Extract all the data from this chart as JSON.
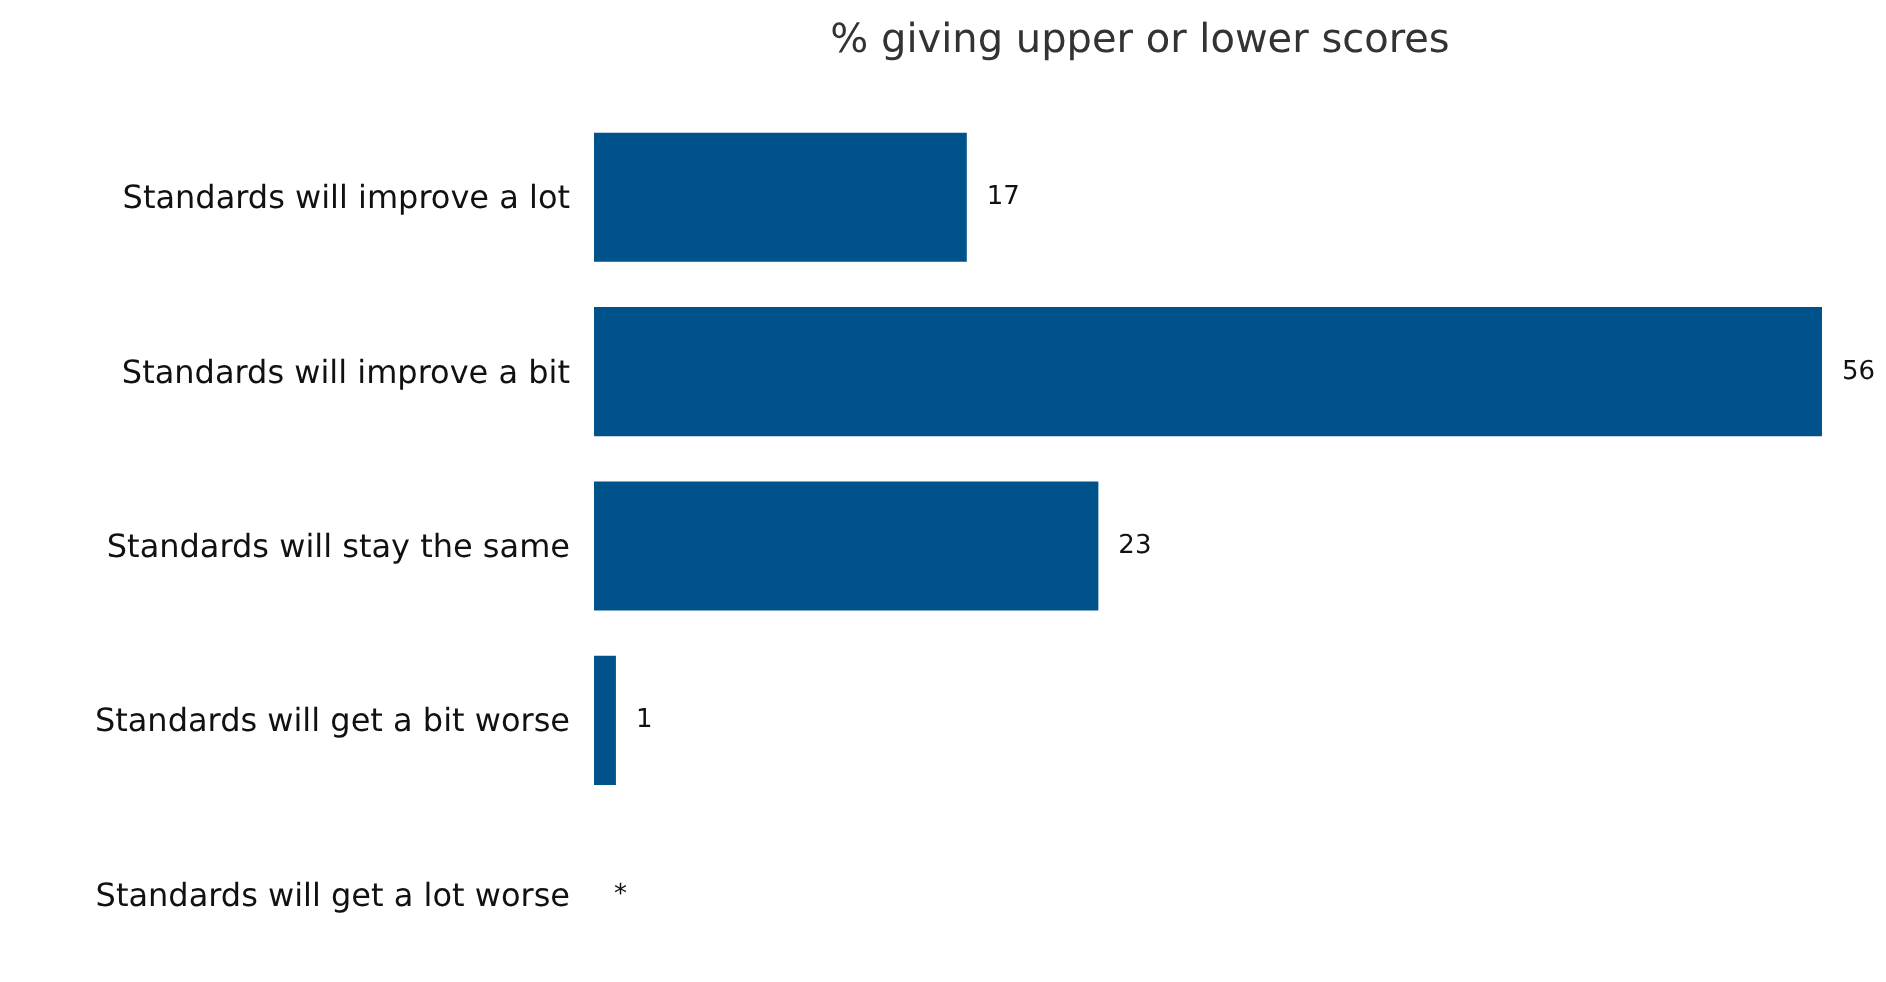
{
  "chart_data": {
    "type": "bar",
    "orientation": "horizontal",
    "title": "% giving upper or lower scores",
    "categories": [
      "Standards will improve a lot",
      "Standards will improve a bit",
      "Standards will stay the same",
      "Standards will get a bit worse",
      "Standards will get a lot worse"
    ],
    "values": [
      17,
      56,
      23,
      1,
      0
    ],
    "value_labels": [
      "17",
      "56",
      "23",
      "1",
      "*"
    ],
    "color": "#00538a",
    "xlim": [
      0,
      56
    ],
    "tick_labels": "y",
    "grid": false
  }
}
